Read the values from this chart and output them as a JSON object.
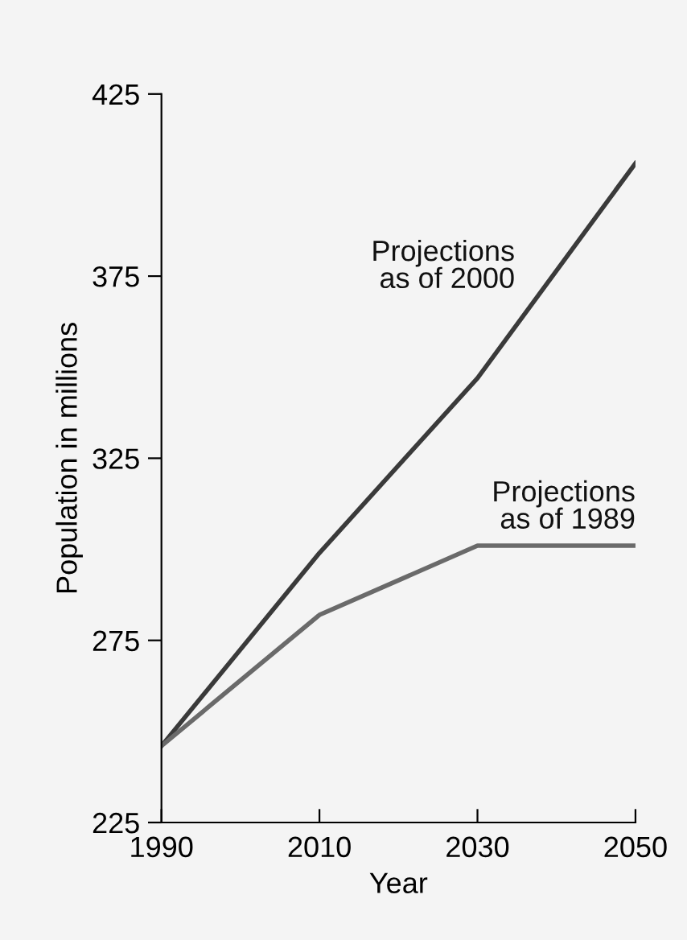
{
  "chart_data": {
    "type": "line",
    "xlabel": "Year",
    "ylabel": "Population in millions",
    "x": [
      1990,
      2010,
      2030,
      2050
    ],
    "series": [
      {
        "name": "Projections\nas of 2000",
        "color": "#3a3a3a",
        "values": [
          246,
          299,
          347,
          406
        ]
      },
      {
        "name": "Projections\nas of 1989",
        "color": "#6a6a6a",
        "values": [
          246,
          282,
          301,
          301
        ]
      }
    ],
    "xlim": [
      1990,
      2050
    ],
    "xticks": [
      1990,
      2010,
      2030,
      2050
    ],
    "ylim": [
      225,
      425
    ],
    "yticks": [
      225,
      275,
      325,
      375,
      425
    ],
    "grid": false,
    "legend": false,
    "marker": "none",
    "line_style": "solid"
  }
}
